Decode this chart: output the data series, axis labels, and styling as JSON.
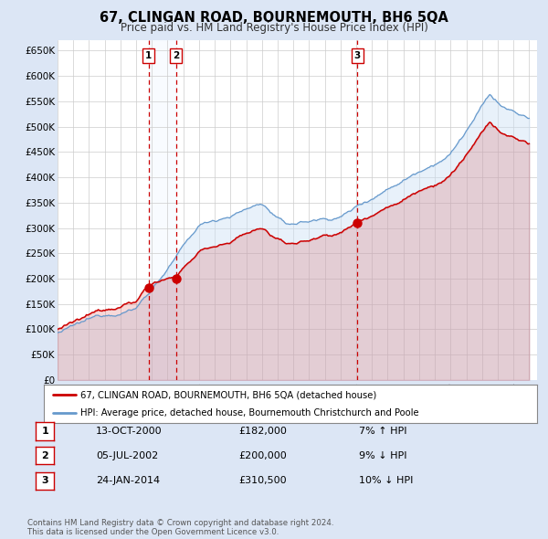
{
  "title": "67, CLINGAN ROAD, BOURNEMOUTH, BH6 5QA",
  "subtitle": "Price paid vs. HM Land Registry's House Price Index (HPI)",
  "ylim": [
    0,
    670000
  ],
  "yticks": [
    0,
    50000,
    100000,
    150000,
    200000,
    250000,
    300000,
    350000,
    400000,
    450000,
    500000,
    550000,
    600000,
    650000
  ],
  "ytick_labels": [
    "£0",
    "£50K",
    "£100K",
    "£150K",
    "£200K",
    "£250K",
    "£300K",
    "£350K",
    "£400K",
    "£450K",
    "£500K",
    "£550K",
    "£600K",
    "£650K"
  ],
  "xlim_start": 1995.0,
  "xlim_end": 2025.5,
  "fig_bg_color": "#dce6f5",
  "plot_bg_color": "#ffffff",
  "grid_color": "#cccccc",
  "red_line_color": "#cc0000",
  "blue_line_color": "#6699cc",
  "blue_fill_color": "#cce0f5",
  "vline_color": "#cc0000",
  "span_color": "#ddeeff",
  "legend_label_red": "67, CLINGAN ROAD, BOURNEMOUTH, BH6 5QA (detached house)",
  "legend_label_blue": "HPI: Average price, detached house, Bournemouth Christchurch and Poole",
  "sale1_x": 2000.79,
  "sale1_y": 182000,
  "sale1_label": "1",
  "sale2_x": 2002.54,
  "sale2_y": 200000,
  "sale2_label": "2",
  "sale3_x": 2014.07,
  "sale3_y": 310500,
  "sale3_label": "3",
  "table_rows": [
    {
      "num": "1",
      "date": "13-OCT-2000",
      "price": "£182,000",
      "hpi": "7% ↑ HPI"
    },
    {
      "num": "2",
      "date": "05-JUL-2002",
      "price": "£200,000",
      "hpi": "9% ↓ HPI"
    },
    {
      "num": "3",
      "date": "24-JAN-2014",
      "price": "£310,500",
      "hpi": "10% ↓ HPI"
    }
  ],
  "footnote": "Contains HM Land Registry data © Crown copyright and database right 2024.\nThis data is licensed under the Open Government Licence v3.0."
}
